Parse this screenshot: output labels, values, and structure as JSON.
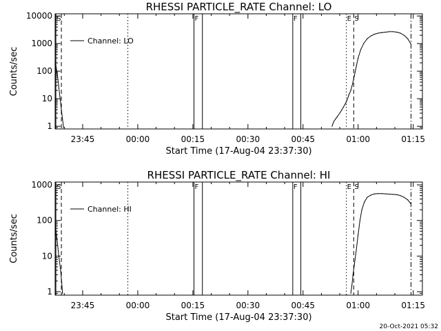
{
  "timestamp": "20-Oct-2021 05:32",
  "chart_data": [
    {
      "type": "line",
      "title": "RHESSI PARTICLE_RATE Channel: LO",
      "xlabel": "Start Time (17-Aug-04 23:37:30)",
      "ylabel": "Counts/sec",
      "y_scale": "log",
      "ylim": [
        0.8,
        12000
      ],
      "xlim_minutes": [
        -22.5,
        77.5
      ],
      "x_ticks": [
        {
          "label": "23:45",
          "minute": -15
        },
        {
          "label": "00:00",
          "minute": 0
        },
        {
          "label": "00:15",
          "minute": 15
        },
        {
          "label": "00:30",
          "minute": 30
        },
        {
          "label": "00:45",
          "minute": 45
        },
        {
          "label": "01:00",
          "minute": 60
        },
        {
          "label": "01:15",
          "minute": 75
        }
      ],
      "y_ticks": [
        {
          "label": "1",
          "value": 1
        },
        {
          "label": "10",
          "value": 10
        },
        {
          "label": "100",
          "value": 100
        },
        {
          "label": "1000",
          "value": 1000
        },
        {
          "label": "10000",
          "value": 10000
        }
      ],
      "legend": "Channel: LO",
      "legend_position": "top-left",
      "markers": [
        {
          "minute": -22.3,
          "style": "solid",
          "label": "S"
        },
        {
          "minute": -20.8,
          "style": "dashed",
          "label": ""
        },
        {
          "minute": -2.7,
          "style": "dotted",
          "label": ""
        },
        {
          "minute": 15.3,
          "style": "solid",
          "label": "F"
        },
        {
          "minute": 17.6,
          "style": "solid",
          "label": ""
        },
        {
          "minute": 42.2,
          "style": "solid",
          "label": "F"
        },
        {
          "minute": 44.4,
          "style": "solid",
          "label": ""
        },
        {
          "minute": 56.8,
          "style": "dotted",
          "label": "E"
        },
        {
          "minute": 58.8,
          "style": "dashed",
          "label": "S"
        },
        {
          "minute": 74.4,
          "style": "dashdot",
          "label": ""
        }
      ],
      "series": [
        {
          "x": [
            -22.5,
            -21.8,
            -21.2,
            -20.8,
            -20.5,
            -20.2,
            52.9,
            53.1,
            53.4,
            53.8,
            54.3,
            55.0,
            55.5,
            56.0,
            56.5,
            57.0,
            57.5,
            58.0,
            58.5,
            59.0,
            59.5,
            60.0,
            60.7,
            61.5,
            62.5,
            63.5,
            64.5,
            65.5,
            66.5,
            67.5,
            68.5,
            69.5,
            70.5,
            71.5,
            72.5,
            73.5,
            74.3
          ],
          "y": [
            250,
            60,
            12,
            4,
            1.8,
            0.9,
            1,
            1.2,
            1.5,
            1.8,
            2.2,
            3,
            3.8,
            5,
            6.5,
            9,
            14,
            20,
            35,
            70,
            150,
            300,
            600,
            1000,
            1500,
            1900,
            2200,
            2400,
            2500,
            2600,
            2700,
            2700,
            2600,
            2400,
            2000,
            1500,
            1000
          ]
        }
      ]
    },
    {
      "type": "line",
      "title": "RHESSI PARTICLE_RATE Channel: HI",
      "xlabel": "Start Time (17-Aug-04 23:37:30)",
      "ylabel": "Counts/sec",
      "y_scale": "log",
      "ylim": [
        0.8,
        1200
      ],
      "xlim_minutes": [
        -22.5,
        77.5
      ],
      "x_ticks": [
        {
          "label": "23:45",
          "minute": -15
        },
        {
          "label": "00:00",
          "minute": 0
        },
        {
          "label": "00:15",
          "minute": 15
        },
        {
          "label": "00:30",
          "minute": 30
        },
        {
          "label": "00:45",
          "minute": 45
        },
        {
          "label": "01:00",
          "minute": 60
        },
        {
          "label": "01:15",
          "minute": 75
        }
      ],
      "y_ticks": [
        {
          "label": "1",
          "value": 1
        },
        {
          "label": "10",
          "value": 10
        },
        {
          "label": "100",
          "value": 100
        },
        {
          "label": "1000",
          "value": 1000
        }
      ],
      "legend": "Channel: HI",
      "legend_position": "top-left",
      "markers": [
        {
          "minute": -22.3,
          "style": "solid",
          "label": "S"
        },
        {
          "minute": -20.8,
          "style": "dashed",
          "label": ""
        },
        {
          "minute": -2.7,
          "style": "dotted",
          "label": ""
        },
        {
          "minute": 15.3,
          "style": "solid",
          "label": "F"
        },
        {
          "minute": 17.6,
          "style": "solid",
          "label": ""
        },
        {
          "minute": 42.2,
          "style": "solid",
          "label": "F"
        },
        {
          "minute": 44.4,
          "style": "solid",
          "label": ""
        },
        {
          "minute": 56.8,
          "style": "dotted",
          "label": "E"
        },
        {
          "minute": 58.8,
          "style": "dashed",
          "label": "S"
        },
        {
          "minute": 74.4,
          "style": "dashdot",
          "label": ""
        }
      ],
      "series": [
        {
          "x": [
            -22.5,
            -22.0,
            -21.5,
            -21.0,
            -20.7,
            -20.5,
            58.0,
            58.3,
            58.6,
            59.0,
            59.5,
            60.0,
            60.5,
            61.0,
            61.7,
            62.5,
            63.5,
            64.5,
            65.5,
            66.5,
            67.5,
            68.5,
            69.5,
            70.5,
            71.5,
            72.5,
            73.5,
            74.3
          ],
          "y": [
            80,
            30,
            10,
            4,
            1.8,
            0.9,
            0.9,
            1.5,
            3,
            6,
            15,
            40,
            100,
            200,
            330,
            450,
            520,
            560,
            570,
            570,
            560,
            550,
            540,
            530,
            500,
            450,
            380,
            300
          ]
        }
      ]
    }
  ]
}
